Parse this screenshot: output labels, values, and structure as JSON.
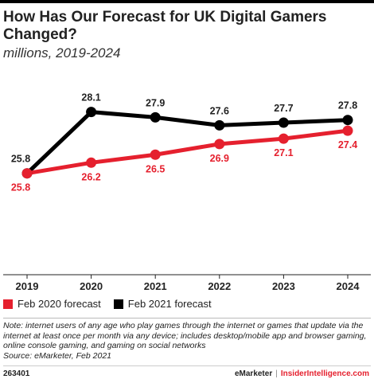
{
  "colors": {
    "accent": "#e5202e",
    "black": "#000000",
    "grid": "#d9d9d9"
  },
  "chart_data": {
    "type": "line",
    "title": "How Has Our Forecast for UK Digital Gamers Changed?",
    "subtitle": "millions, 2019-2024",
    "categories": [
      "2019",
      "2020",
      "2021",
      "2022",
      "2023",
      "2024"
    ],
    "ylim": [
      22,
      30
    ],
    "legend": "bottom-left",
    "series": [
      {
        "name": "Feb 2020 forecast",
        "color": "#e5202e",
        "values": [
          25.8,
          26.2,
          26.5,
          26.9,
          27.1,
          27.4
        ],
        "labels": [
          "25.8",
          "26.2",
          "26.5",
          "26.9",
          "27.1",
          "27.4"
        ]
      },
      {
        "name": "Feb 2021 forecast",
        "color": "#000000",
        "values": [
          25.8,
          28.1,
          27.9,
          27.6,
          27.7,
          27.8
        ],
        "labels": [
          "25.8",
          "28.1",
          "27.9",
          "27.6",
          "27.7",
          "27.8"
        ]
      }
    ]
  },
  "note": "Note: internet users of any age who play games through the internet or games that update via the internet at least once per month via any device; includes desktop/mobile app and browser gaming, online console gaming, and gaming on social networks",
  "source": "Source: eMarketer, Feb 2021",
  "footer": {
    "id": "263401",
    "brand1": "eMarketer",
    "separator": "|",
    "brand2": "InsiderIntelligence.com"
  }
}
